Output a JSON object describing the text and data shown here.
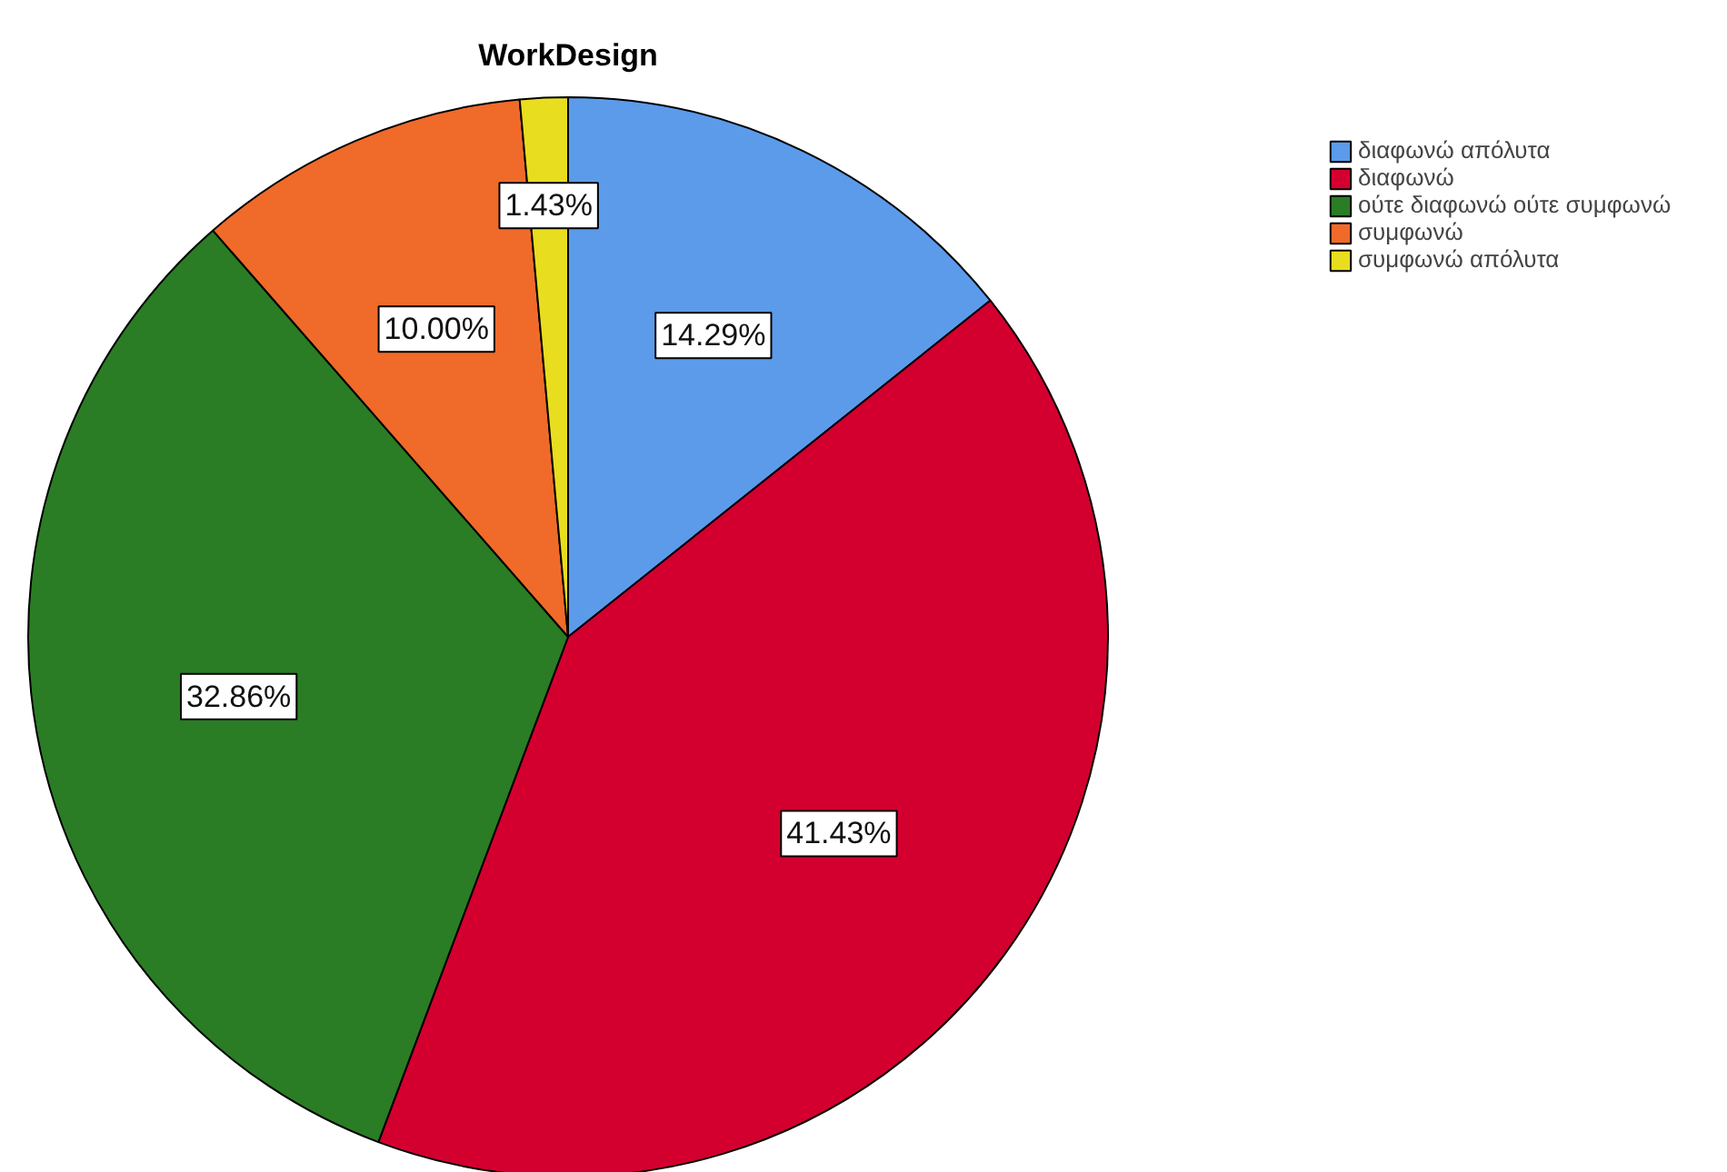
{
  "chart_data": {
    "type": "pie",
    "title": "WorkDesign",
    "categories": [
      "διαφωνώ απόλυτα",
      "διαφωνώ",
      "ούτε διαφωνώ ούτε συμφωνώ",
      "συμφωνώ",
      "συμφωνώ απόλυτα"
    ],
    "values": [
      14.29,
      41.43,
      32.86,
      10.0,
      1.43
    ],
    "colors": [
      "#5b9bea",
      "#d3002f",
      "#2a7d24",
      "#f06a2a",
      "#e9dd1f"
    ],
    "value_labels": [
      "14.29%",
      "41.43%",
      "32.86%",
      "10.00%",
      "1.43%"
    ],
    "legend": "top right"
  }
}
